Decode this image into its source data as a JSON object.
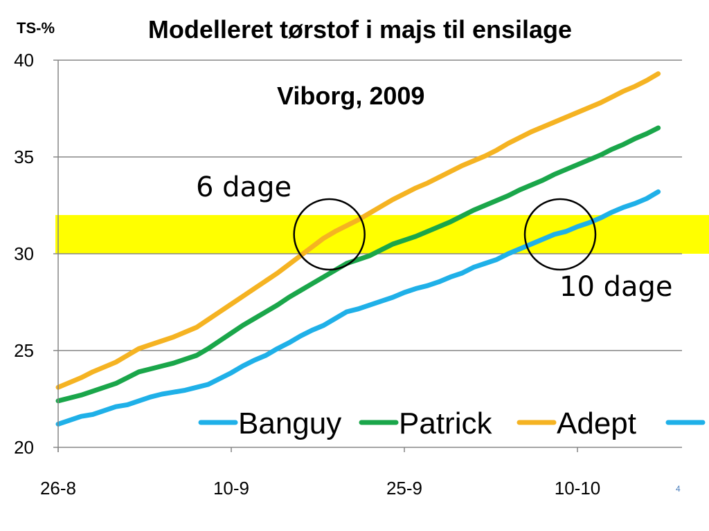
{
  "chart_data": {
    "type": "line",
    "title": "Modelleret tørstof i majs til ensilage",
    "subtitle": "Viborg, 2009",
    "ylabel": "TS-%",
    "xlabel": "",
    "ylim": [
      20,
      40
    ],
    "yticks": [
      20,
      25,
      30,
      35,
      40
    ],
    "x_ticks": [
      {
        "label": "26-8",
        "day": 0
      },
      {
        "label": "10-9",
        "day": 15
      },
      {
        "label": "25-9",
        "day": 30
      },
      {
        "label": "10-10",
        "day": 45
      }
    ],
    "x_range_days": [
      0,
      54
    ],
    "grid": "horizontal",
    "legend_position": "bottom-inside",
    "highlight_band": {
      "y_min": 30,
      "y_max": 32,
      "color": "#ffff00"
    },
    "series": [
      {
        "name": "Banguy",
        "color": "#1fb0e8",
        "values": [
          21.2,
          21.4,
          21.6,
          21.7,
          21.9,
          22.1,
          22.2,
          22.4,
          22.6,
          22.75,
          22.85,
          22.95,
          23.1,
          23.25,
          23.55,
          23.85,
          24.2,
          24.5,
          24.75,
          25.1,
          25.4,
          25.75,
          26.05,
          26.3,
          26.65,
          27.0,
          27.15,
          27.35,
          27.55,
          27.75,
          28.0,
          28.2,
          28.35,
          28.55,
          28.8,
          29.0,
          29.3,
          29.5,
          29.7,
          30.0,
          30.25,
          30.5,
          30.75,
          31.0,
          31.15,
          31.4,
          31.6,
          31.85,
          32.15,
          32.4,
          32.6,
          32.85,
          33.2
        ]
      },
      {
        "name": "Patrick",
        "color": "#1aa64a",
        "values": [
          22.4,
          22.55,
          22.7,
          22.9,
          23.1,
          23.3,
          23.6,
          23.9,
          24.05,
          24.2,
          24.35,
          24.55,
          24.75,
          25.1,
          25.5,
          25.9,
          26.3,
          26.65,
          27.0,
          27.35,
          27.75,
          28.1,
          28.45,
          28.8,
          29.15,
          29.5,
          29.7,
          29.9,
          30.2,
          30.5,
          30.7,
          30.9,
          31.15,
          31.4,
          31.65,
          31.95,
          32.25,
          32.5,
          32.75,
          33.0,
          33.3,
          33.55,
          33.8,
          34.1,
          34.35,
          34.6,
          34.85,
          35.1,
          35.4,
          35.65,
          35.95,
          36.2,
          36.5
        ]
      },
      {
        "name": "Adept",
        "color": "#f5b322",
        "values": [
          23.1,
          23.35,
          23.6,
          23.9,
          24.15,
          24.4,
          24.75,
          25.1,
          25.3,
          25.5,
          25.7,
          25.95,
          26.2,
          26.6,
          27.0,
          27.4,
          27.8,
          28.2,
          28.6,
          29.0,
          29.45,
          29.9,
          30.35,
          30.8,
          31.15,
          31.45,
          31.75,
          32.1,
          32.45,
          32.8,
          33.1,
          33.4,
          33.65,
          33.95,
          34.25,
          34.55,
          34.8,
          35.05,
          35.35,
          35.7,
          36.0,
          36.3,
          36.55,
          36.8,
          37.05,
          37.3,
          37.55,
          37.8,
          38.1,
          38.4,
          38.65,
          38.95,
          39.3
        ]
      },
      {
        "name": "",
        "color": "#1fb0e8",
        "values": []
      }
    ],
    "annotations": [
      {
        "text": "6 dage",
        "circle_day": 23.5,
        "circle_y": 31
      },
      {
        "text": "10 dage",
        "circle_day": 43.5,
        "circle_y": 31
      }
    ]
  },
  "page_number": "4",
  "colors": {
    "background": "#ffffff",
    "axis": "#868686",
    "grid": "#868686",
    "annotation": "#000000"
  }
}
